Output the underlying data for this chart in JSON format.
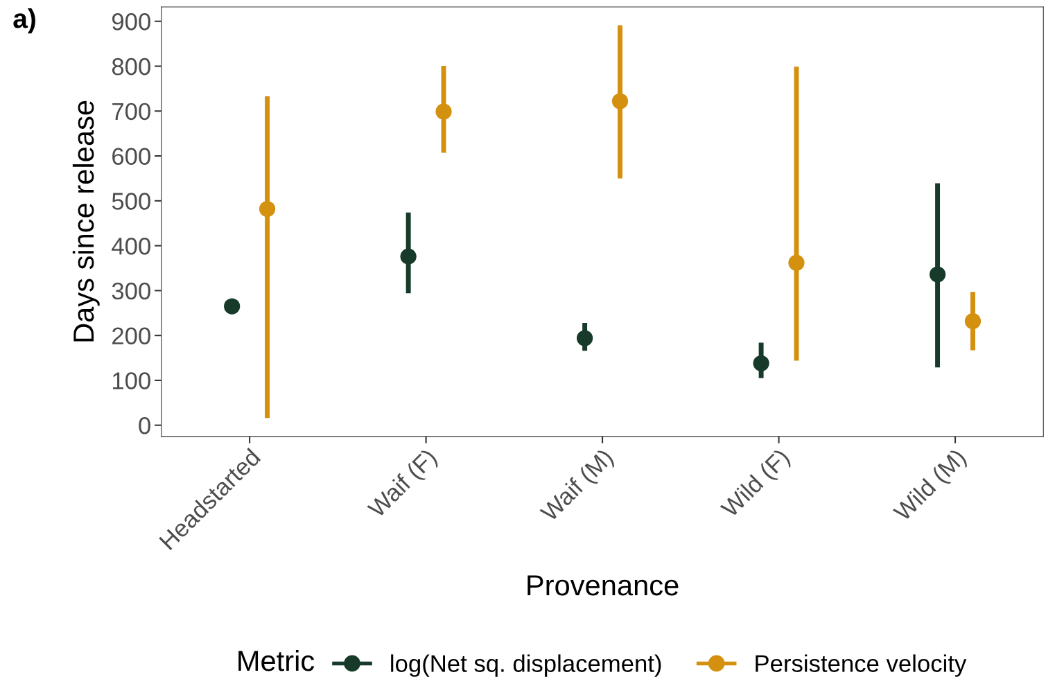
{
  "chart_data": {
    "type": "scatter",
    "xlabel": "Provenance",
    "ylabel": "Days since release",
    "legend_title": "Metric",
    "annotations": [
      "a)"
    ],
    "categories": [
      "Headstarted",
      "Waif (F)",
      "Waif (M)",
      "Wild (F)",
      "Wild (M)"
    ],
    "series": [
      {
        "name": "log(Net sq. displacement)",
        "color": "#173a2a",
        "values": [
          265,
          376,
          194,
          138,
          336
        ],
        "errors": [
          null,
          [
            294,
            474
          ],
          [
            166,
            228
          ],
          [
            105,
            184
          ],
          [
            129,
            539
          ]
        ]
      },
      {
        "name": "Persistence velocity",
        "color": "#d4900f",
        "values": [
          482,
          699,
          722,
          362,
          232
        ],
        "errors": [
          [
            16,
            733
          ],
          [
            607,
            801
          ],
          [
            550,
            891
          ],
          [
            144,
            799
          ],
          [
            167,
            297
          ]
        ]
      }
    ],
    "ylim": [
      -25,
      932
    ],
    "yticks": [
      0,
      100,
      200,
      300,
      400,
      500,
      600,
      700,
      800,
      900
    ],
    "grid": false,
    "legend": "bottom",
    "marker": "circle"
  }
}
